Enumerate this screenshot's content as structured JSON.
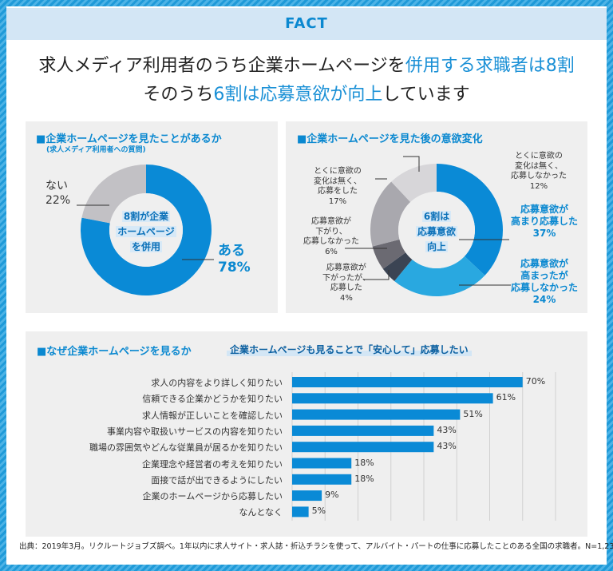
{
  "header": {
    "label": "FACT"
  },
  "headline": {
    "line1_plain": "求人メディア利用者のうち企業ホームページを",
    "line1_highlight": "併用する求職者は8割",
    "line2_plain_a": "そのうち",
    "line2_highlight": "6割は応募意欲が向上",
    "line2_plain_b": "しています"
  },
  "colors": {
    "accent": "#0a8ad6",
    "light_blue": "#29a8e0",
    "panel_bg": "#efefef"
  },
  "chart_data": [
    {
      "type": "pie",
      "title": "■企業ホームページを見たことがあるか",
      "subtitle": "(求人メディア利用者への質問)",
      "center_text": [
        "8割が企業",
        "ホームページ",
        "を併用"
      ],
      "slices": [
        {
          "label": "ある",
          "value": 78,
          "display": "78%",
          "color": "#0a8ad6"
        },
        {
          "label": "ない",
          "value": 22,
          "display": "22%",
          "color": "#c2c1c5"
        }
      ]
    },
    {
      "type": "pie",
      "title": "■企業ホームページを見た後の意欲変化",
      "center_text": [
        "6割は",
        "応募意欲",
        "向上"
      ],
      "slices": [
        {
          "label": "応募意欲が高まり応募した",
          "lines": [
            "応募意欲が",
            "高まり応募した"
          ],
          "value": 37,
          "display": "37%",
          "color": "#0a8ad6"
        },
        {
          "label": "応募意欲が高まったが応募しなかった",
          "lines": [
            "応募意欲が",
            "高まったが",
            "応募しなかった"
          ],
          "value": 24,
          "display": "24%",
          "color": "#29a8e0"
        },
        {
          "label": "応募意欲が下がったが、応募した",
          "lines": [
            "応募意欲が",
            "下がったが、",
            "応募した"
          ],
          "value": 4,
          "display": "4%",
          "color": "#3b4453"
        },
        {
          "label": "応募意欲が下がり、応募しなかった",
          "lines": [
            "応募意欲が",
            "下がり、",
            "応募しなかった"
          ],
          "value": 6,
          "display": "6%",
          "color": "#6b6a72"
        },
        {
          "label": "とくに意欲の変化は無く、応募をした",
          "lines": [
            "とくに意欲の",
            "変化は無く、",
            "応募をした"
          ],
          "value": 17,
          "display": "17%",
          "color": "#a9a8ae"
        },
        {
          "label": "とくに意欲の変化は無く、応募しなかった",
          "lines": [
            "とくに意欲の",
            "変化は無く、",
            "応募しなかった"
          ],
          "value": 12,
          "display": "12%",
          "color": "#d7d6d9"
        }
      ]
    },
    {
      "type": "bar",
      "orientation": "horizontal",
      "title": "■なぜ企業ホームページを見るか",
      "annotation": "企業ホームページも見ることで「安心して」応募したい",
      "xlim": [
        0,
        80
      ],
      "grid": true,
      "categories": [
        "求人の内容をより詳しく知りたい",
        "信頼できる企業かどうかを知りたい",
        "求人情報が正しいことを確認したい",
        "事業内容や取扱いサービスの内容を知りたい",
        "職場の雰囲気やどんな従業員が居るかを知りたい",
        "企業理念や経営者の考えを知りたい",
        "面接で話が出できるようにしたい",
        "企業のホームページから応募したい",
        "なんとなく"
      ],
      "values": [
        70,
        61,
        51,
        43,
        43,
        18,
        18,
        9,
        5
      ],
      "labels": [
        "70%",
        "61%",
        "51%",
        "43%",
        "43%",
        "18%",
        "18%",
        "9%",
        "5%"
      ],
      "color": "#0a8ad6"
    }
  ],
  "footnote": "出典：2019年3月。リクルートジョブズ調べ。1年以内に求人サイト・求人誌・折込チラシを使って、アルバイト・パートの仕事に応募したことのある全国の求職者。N=1,238"
}
